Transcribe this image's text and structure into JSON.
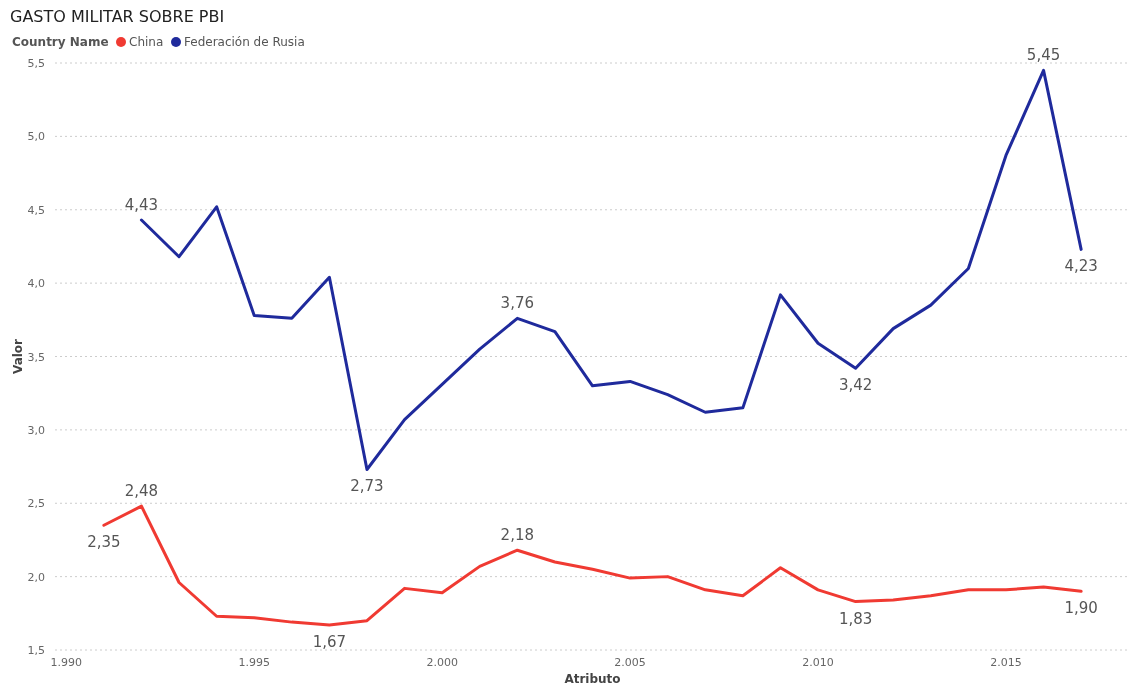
{
  "chart_data": {
    "type": "line",
    "title": "GASTO MILITAR SOBRE PBI",
    "xlabel": "Atributo",
    "ylabel": "Valor",
    "legend_title": "Country Name",
    "legend": "top left",
    "grid": "y",
    "line_style": "solid",
    "marker": "none",
    "xlim": [
      1989.7,
      2018.3
    ],
    "xticks": [
      {
        "value": 1990,
        "label": "1.990"
      },
      {
        "value": 1995,
        "label": "1.995"
      },
      {
        "value": 2000,
        "label": "2.000"
      },
      {
        "value": 2005,
        "label": "2.005"
      },
      {
        "value": 2010,
        "label": "2.010"
      },
      {
        "value": 2015,
        "label": "2.015"
      }
    ],
    "ylim": [
      1.5,
      5.5
    ],
    "yticks": [
      {
        "value": 1.5,
        "label": "1,5"
      },
      {
        "value": 2,
        "label": "2,0"
      },
      {
        "value": 2.5,
        "label": "2,5"
      },
      {
        "value": 3,
        "label": "3,0"
      },
      {
        "value": 3.5,
        "label": "3,5"
      },
      {
        "value": 4,
        "label": "4,0"
      },
      {
        "value": 4.5,
        "label": "4,5"
      },
      {
        "value": 5,
        "label": "5,0"
      },
      {
        "value": 5.5,
        "label": "5,5"
      }
    ],
    "series": [
      {
        "name": "China",
        "color": "#f03a32",
        "x": [
          1991,
          1992,
          1993,
          1994,
          1995,
          1996,
          1997,
          1998,
          1999,
          2000,
          2001,
          2002,
          2003,
          2004,
          2005,
          2006,
          2007,
          2008,
          2009,
          2010,
          2011,
          2012,
          2013,
          2014,
          2015,
          2016,
          2017
        ],
        "values": [
          2.35,
          2.48,
          1.96,
          1.73,
          1.72,
          1.69,
          1.67,
          1.7,
          1.92,
          1.89,
          2.07,
          2.18,
          2.1,
          2.05,
          1.99,
          2.0,
          1.91,
          1.87,
          2.06,
          1.91,
          1.83,
          1.84,
          1.87,
          1.91,
          1.91,
          1.93,
          1.9
        ],
        "value_labels": [
          "2,35",
          "2,48",
          null,
          null,
          null,
          null,
          "1,67",
          null,
          null,
          null,
          null,
          "2,18",
          null,
          null,
          null,
          null,
          null,
          null,
          null,
          null,
          "1,83",
          null,
          null,
          null,
          null,
          null,
          "1,90"
        ]
      },
      {
        "name": "Federación de Rusia",
        "color": "#1f2a9c",
        "x": [
          1992,
          1993,
          1994,
          1995,
          1996,
          1997,
          1998,
          1999,
          2000,
          2001,
          2002,
          2003,
          2004,
          2005,
          2006,
          2007,
          2008,
          2009,
          2010,
          2011,
          2012,
          2013,
          2014,
          2015,
          2016,
          2017
        ],
        "values": [
          4.43,
          4.18,
          4.52,
          3.78,
          3.76,
          4.04,
          2.73,
          3.07,
          3.31,
          3.55,
          3.76,
          3.67,
          3.3,
          3.33,
          3.24,
          3.12,
          3.15,
          3.92,
          3.59,
          3.42,
          3.69,
          3.85,
          4.1,
          4.87,
          5.45,
          4.23
        ],
        "value_labels": [
          "4,43",
          null,
          null,
          null,
          null,
          null,
          "2,73",
          null,
          null,
          null,
          "3,76",
          null,
          null,
          null,
          null,
          null,
          null,
          null,
          null,
          "3,42",
          null,
          null,
          null,
          null,
          "5,45",
          "4,23"
        ]
      }
    ]
  }
}
